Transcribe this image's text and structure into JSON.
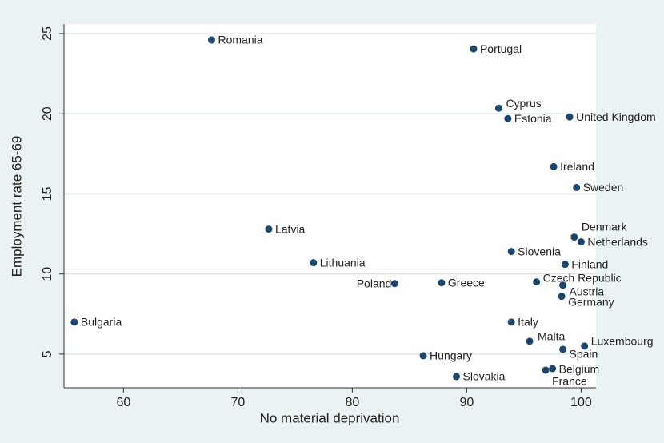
{
  "chart_data": {
    "type": "scatter",
    "x_label": "No material deprivation",
    "y_label": "Employment rate 65-69",
    "color": "#1a476f",
    "grid": true,
    "xlim": [
      54.8,
      101.3
    ],
    "xticks": [
      60,
      70,
      80,
      90,
      100
    ],
    "ylim": [
      2.9,
      25.6
    ],
    "yticks": [
      5,
      10,
      15,
      20,
      25
    ],
    "labels": [
      "Romania",
      "Portugal",
      "Cyprus",
      "Estonia",
      "United Kingdom",
      "Ireland",
      "Sweden",
      "Latvia",
      "Denmark",
      "Netherlands",
      "Slovenia",
      "Lithuania",
      "Finland",
      "Poland",
      "Greece",
      "Czech Republic",
      "Austria",
      "Germany",
      "Bulgaria",
      "Italy",
      "Malta",
      "Luxembourg",
      "Spain",
      "Hungary",
      "Belgium",
      "France",
      "Slovakia"
    ],
    "x": [
      67.7,
      90.6,
      92.8,
      93.6,
      99.0,
      97.6,
      99.6,
      72.7,
      99.4,
      100.0,
      93.9,
      76.6,
      98.6,
      83.7,
      87.8,
      96.1,
      98.4,
      98.3,
      55.7,
      93.9,
      95.5,
      100.3,
      98.4,
      86.2,
      97.5,
      96.9,
      89.1
    ],
    "values": [
      24.6,
      24.05,
      20.35,
      19.7,
      19.8,
      16.7,
      15.4,
      12.8,
      12.3,
      12.0,
      11.4,
      10.7,
      10.6,
      9.4,
      9.45,
      9.5,
      9.3,
      8.6,
      7.0,
      7.0,
      5.8,
      5.5,
      5.3,
      4.9,
      4.1,
      4.0,
      3.6
    ]
  }
}
